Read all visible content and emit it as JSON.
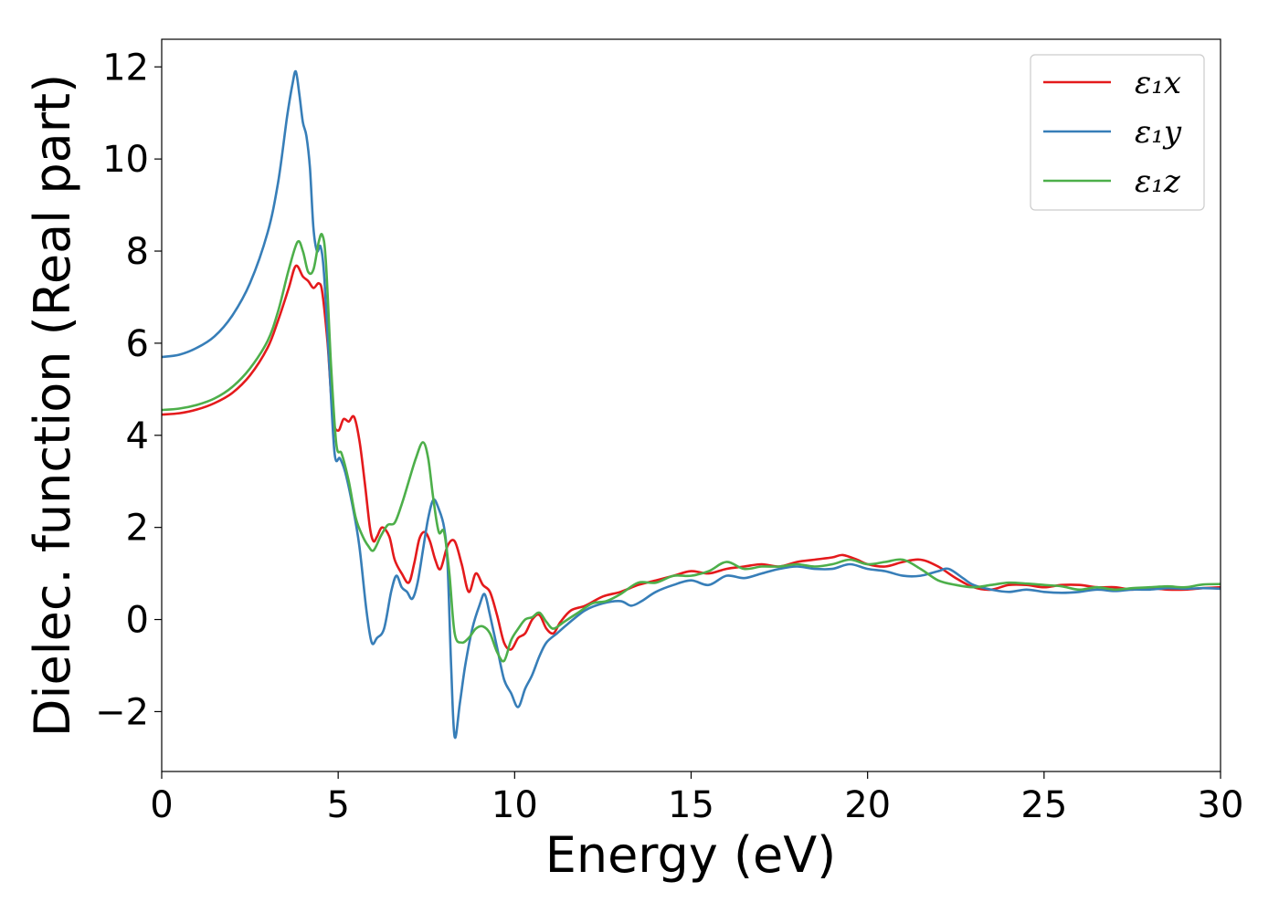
{
  "chart_data": {
    "type": "line",
    "xlabel": "Energy (eV)",
    "ylabel": "Dielec. function (Real part)",
    "xlim": [
      0,
      30
    ],
    "ylim": [
      -3.3,
      12.6
    ],
    "xticks": [
      0,
      5,
      10,
      15,
      20,
      25,
      30
    ],
    "yticks": [
      -2,
      0,
      2,
      4,
      6,
      8,
      10,
      12
    ],
    "xtick_labels": [
      "0",
      "5",
      "10",
      "15",
      "20",
      "25",
      "30"
    ],
    "ytick_labels": [
      "−2",
      "0",
      "2",
      "4",
      "6",
      "8",
      "10",
      "12"
    ],
    "grid": false,
    "legend_position": "top-right",
    "series": [
      {
        "name": "ε₁x",
        "color": "#e41a1c",
        "points": [
          [
            0,
            4.45
          ],
          [
            0.5,
            4.48
          ],
          [
            1,
            4.56
          ],
          [
            1.5,
            4.7
          ],
          [
            2,
            4.92
          ],
          [
            2.5,
            5.3
          ],
          [
            3,
            5.9
          ],
          [
            3.3,
            6.5
          ],
          [
            3.6,
            7.2
          ],
          [
            3.8,
            7.68
          ],
          [
            4.0,
            7.45
          ],
          [
            4.15,
            7.35
          ],
          [
            4.3,
            7.2
          ],
          [
            4.45,
            7.3
          ],
          [
            4.55,
            7.1
          ],
          [
            4.7,
            6.0
          ],
          [
            4.85,
            4.4
          ],
          [
            5.0,
            4.1
          ],
          [
            5.15,
            4.35
          ],
          [
            5.3,
            4.3
          ],
          [
            5.45,
            4.4
          ],
          [
            5.6,
            3.9
          ],
          [
            5.75,
            3.0
          ],
          [
            5.9,
            2.0
          ],
          [
            6.0,
            1.7
          ],
          [
            6.1,
            1.8
          ],
          [
            6.25,
            2.0
          ],
          [
            6.45,
            1.8
          ],
          [
            6.6,
            1.3
          ],
          [
            6.8,
            1.0
          ],
          [
            7.0,
            0.8
          ],
          [
            7.15,
            1.2
          ],
          [
            7.3,
            1.75
          ],
          [
            7.45,
            1.9
          ],
          [
            7.6,
            1.7
          ],
          [
            7.75,
            1.3
          ],
          [
            7.9,
            1.1
          ],
          [
            8.1,
            1.6
          ],
          [
            8.3,
            1.7
          ],
          [
            8.5,
            1.2
          ],
          [
            8.7,
            0.6
          ],
          [
            8.9,
            1.0
          ],
          [
            9.1,
            0.75
          ],
          [
            9.3,
            0.6
          ],
          [
            9.5,
            0.1
          ],
          [
            9.7,
            -0.5
          ],
          [
            9.9,
            -0.65
          ],
          [
            10.1,
            -0.4
          ],
          [
            10.3,
            -0.3
          ],
          [
            10.5,
            0.0
          ],
          [
            10.7,
            0.1
          ],
          [
            10.9,
            -0.2
          ],
          [
            11.1,
            -0.3
          ],
          [
            11.3,
            -0.05
          ],
          [
            11.6,
            0.2
          ],
          [
            12.0,
            0.3
          ],
          [
            12.5,
            0.5
          ],
          [
            13.0,
            0.6
          ],
          [
            13.5,
            0.75
          ],
          [
            14.0,
            0.85
          ],
          [
            14.5,
            0.95
          ],
          [
            15.0,
            1.05
          ],
          [
            15.5,
            1.0
          ],
          [
            16.0,
            1.1
          ],
          [
            16.5,
            1.15
          ],
          [
            17.0,
            1.2
          ],
          [
            17.5,
            1.15
          ],
          [
            18.0,
            1.25
          ],
          [
            18.5,
            1.3
          ],
          [
            19.0,
            1.35
          ],
          [
            19.3,
            1.4
          ],
          [
            19.7,
            1.3
          ],
          [
            20.0,
            1.2
          ],
          [
            20.5,
            1.15
          ],
          [
            21.0,
            1.25
          ],
          [
            21.5,
            1.3
          ],
          [
            22.0,
            1.15
          ],
          [
            22.5,
            0.9
          ],
          [
            23.0,
            0.7
          ],
          [
            23.5,
            0.65
          ],
          [
            24.0,
            0.75
          ],
          [
            24.5,
            0.75
          ],
          [
            25.0,
            0.7
          ],
          [
            25.5,
            0.75
          ],
          [
            26.0,
            0.75
          ],
          [
            26.5,
            0.7
          ],
          [
            27.0,
            0.7
          ],
          [
            27.5,
            0.65
          ],
          [
            28.0,
            0.68
          ],
          [
            28.5,
            0.65
          ],
          [
            29.0,
            0.65
          ],
          [
            29.5,
            0.68
          ],
          [
            30.0,
            0.7
          ]
        ]
      },
      {
        "name": "ε₁y",
        "color": "#377eb8",
        "points": [
          [
            0,
            5.7
          ],
          [
            0.5,
            5.75
          ],
          [
            1,
            5.9
          ],
          [
            1.5,
            6.15
          ],
          [
            2,
            6.6
          ],
          [
            2.5,
            7.3
          ],
          [
            3,
            8.4
          ],
          [
            3.3,
            9.5
          ],
          [
            3.55,
            10.9
          ],
          [
            3.7,
            11.6
          ],
          [
            3.8,
            11.9
          ],
          [
            3.9,
            11.4
          ],
          [
            4.0,
            10.8
          ],
          [
            4.1,
            10.5
          ],
          [
            4.2,
            9.8
          ],
          [
            4.3,
            8.5
          ],
          [
            4.4,
            8.0
          ],
          [
            4.5,
            8.1
          ],
          [
            4.6,
            7.5
          ],
          [
            4.75,
            5.5
          ],
          [
            4.9,
            3.6
          ],
          [
            5.05,
            3.5
          ],
          [
            5.2,
            3.2
          ],
          [
            5.4,
            2.5
          ],
          [
            5.6,
            1.6
          ],
          [
            5.8,
            0.2
          ],
          [
            5.95,
            -0.5
          ],
          [
            6.1,
            -0.4
          ],
          [
            6.3,
            -0.2
          ],
          [
            6.5,
            0.6
          ],
          [
            6.65,
            0.95
          ],
          [
            6.8,
            0.7
          ],
          [
            6.95,
            0.6
          ],
          [
            7.1,
            0.45
          ],
          [
            7.25,
            0.8
          ],
          [
            7.4,
            1.5
          ],
          [
            7.55,
            2.2
          ],
          [
            7.7,
            2.6
          ],
          [
            7.85,
            2.4
          ],
          [
            8.0,
            2.0
          ],
          [
            8.1,
            1.2
          ],
          [
            8.2,
            -1.0
          ],
          [
            8.3,
            -2.55
          ],
          [
            8.45,
            -1.8
          ],
          [
            8.6,
            -1.0
          ],
          [
            8.8,
            -0.2
          ],
          [
            9.0,
            0.3
          ],
          [
            9.15,
            0.55
          ],
          [
            9.3,
            0.1
          ],
          [
            9.5,
            -0.6
          ],
          [
            9.7,
            -1.3
          ],
          [
            9.9,
            -1.6
          ],
          [
            10.1,
            -1.9
          ],
          [
            10.3,
            -1.5
          ],
          [
            10.5,
            -1.2
          ],
          [
            10.7,
            -0.8
          ],
          [
            10.9,
            -0.5
          ],
          [
            11.2,
            -0.3
          ],
          [
            11.5,
            -0.1
          ],
          [
            12.0,
            0.2
          ],
          [
            12.5,
            0.35
          ],
          [
            13.0,
            0.4
          ],
          [
            13.3,
            0.3
          ],
          [
            13.6,
            0.4
          ],
          [
            14.0,
            0.6
          ],
          [
            14.5,
            0.75
          ],
          [
            15.0,
            0.85
          ],
          [
            15.5,
            0.75
          ],
          [
            16.0,
            0.95
          ],
          [
            16.5,
            0.9
          ],
          [
            17.0,
            1.0
          ],
          [
            17.5,
            1.1
          ],
          [
            18.0,
            1.15
          ],
          [
            18.5,
            1.1
          ],
          [
            19.0,
            1.1
          ],
          [
            19.5,
            1.2
          ],
          [
            20.0,
            1.1
          ],
          [
            20.5,
            1.05
          ],
          [
            21.0,
            0.95
          ],
          [
            21.5,
            0.95
          ],
          [
            22.0,
            1.05
          ],
          [
            22.3,
            1.1
          ],
          [
            22.7,
            0.9
          ],
          [
            23.0,
            0.75
          ],
          [
            23.5,
            0.65
          ],
          [
            24.0,
            0.6
          ],
          [
            24.5,
            0.65
          ],
          [
            25.0,
            0.6
          ],
          [
            25.5,
            0.58
          ],
          [
            26.0,
            0.6
          ],
          [
            26.5,
            0.65
          ],
          [
            27.0,
            0.62
          ],
          [
            27.5,
            0.65
          ],
          [
            28.0,
            0.65
          ],
          [
            28.5,
            0.68
          ],
          [
            29.0,
            0.67
          ],
          [
            29.5,
            0.68
          ],
          [
            30.0,
            0.67
          ]
        ]
      },
      {
        "name": "ε₁z",
        "color": "#4daf4a",
        "points": [
          [
            0,
            4.55
          ],
          [
            0.5,
            4.58
          ],
          [
            1,
            4.66
          ],
          [
            1.5,
            4.8
          ],
          [
            2,
            5.05
          ],
          [
            2.5,
            5.45
          ],
          [
            3,
            6.05
          ],
          [
            3.3,
            6.7
          ],
          [
            3.6,
            7.6
          ],
          [
            3.85,
            8.2
          ],
          [
            4.0,
            8.0
          ],
          [
            4.15,
            7.55
          ],
          [
            4.3,
            7.6
          ],
          [
            4.45,
            8.2
          ],
          [
            4.55,
            8.35
          ],
          [
            4.65,
            7.8
          ],
          [
            4.8,
            5.5
          ],
          [
            4.95,
            3.8
          ],
          [
            5.1,
            3.6
          ],
          [
            5.3,
            3.0
          ],
          [
            5.5,
            2.2
          ],
          [
            5.7,
            1.8
          ],
          [
            5.85,
            1.6
          ],
          [
            6.0,
            1.5
          ],
          [
            6.2,
            1.8
          ],
          [
            6.4,
            2.05
          ],
          [
            6.6,
            2.1
          ],
          [
            6.8,
            2.5
          ],
          [
            7.0,
            3.0
          ],
          [
            7.2,
            3.5
          ],
          [
            7.4,
            3.85
          ],
          [
            7.55,
            3.5
          ],
          [
            7.7,
            2.6
          ],
          [
            7.85,
            1.9
          ],
          [
            8.0,
            1.9
          ],
          [
            8.15,
            1.0
          ],
          [
            8.3,
            -0.3
          ],
          [
            8.5,
            -0.5
          ],
          [
            8.7,
            -0.4
          ],
          [
            8.9,
            -0.2
          ],
          [
            9.1,
            -0.15
          ],
          [
            9.3,
            -0.3
          ],
          [
            9.5,
            -0.7
          ],
          [
            9.7,
            -0.9
          ],
          [
            9.9,
            -0.45
          ],
          [
            10.1,
            -0.2
          ],
          [
            10.3,
            0.0
          ],
          [
            10.5,
            0.05
          ],
          [
            10.7,
            0.15
          ],
          [
            10.9,
            -0.05
          ],
          [
            11.1,
            -0.2
          ],
          [
            11.4,
            -0.05
          ],
          [
            11.8,
            0.15
          ],
          [
            12.2,
            0.35
          ],
          [
            12.6,
            0.4
          ],
          [
            13.0,
            0.55
          ],
          [
            13.5,
            0.8
          ],
          [
            14.0,
            0.8
          ],
          [
            14.5,
            0.95
          ],
          [
            15.0,
            0.95
          ],
          [
            15.5,
            1.05
          ],
          [
            16.0,
            1.25
          ],
          [
            16.5,
            1.1
          ],
          [
            17.0,
            1.15
          ],
          [
            17.5,
            1.15
          ],
          [
            18.0,
            1.2
          ],
          [
            18.5,
            1.15
          ],
          [
            19.0,
            1.2
          ],
          [
            19.5,
            1.3
          ],
          [
            20.0,
            1.2
          ],
          [
            20.5,
            1.25
          ],
          [
            21.0,
            1.3
          ],
          [
            21.5,
            1.1
          ],
          [
            22.0,
            0.85
          ],
          [
            22.5,
            0.75
          ],
          [
            23.0,
            0.7
          ],
          [
            23.5,
            0.75
          ],
          [
            24.0,
            0.8
          ],
          [
            24.5,
            0.78
          ],
          [
            25.0,
            0.75
          ],
          [
            25.5,
            0.72
          ],
          [
            26.0,
            0.65
          ],
          [
            26.5,
            0.7
          ],
          [
            27.0,
            0.65
          ],
          [
            27.5,
            0.68
          ],
          [
            28.0,
            0.7
          ],
          [
            28.5,
            0.72
          ],
          [
            29.0,
            0.7
          ],
          [
            29.5,
            0.76
          ],
          [
            30.0,
            0.77
          ]
        ]
      }
    ]
  }
}
